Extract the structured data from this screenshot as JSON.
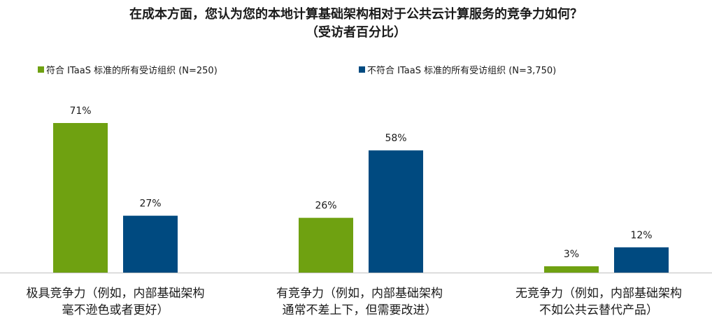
{
  "chart_data": {
    "type": "bar",
    "title": "在成本方面，您认为您的本地计算基础架构相对于公共云计算服务的竞争力如何？",
    "subtitle": "（受访者百分比）",
    "categories": [
      [
        "极具竞争力（例如，内部基础架构",
        "毫不逊色或者更好）"
      ],
      [
        "有竞争力（例如，内部基础架构",
        "通常不差上下，但需要改进）"
      ],
      [
        "无竞争力（例如，内部基础架构",
        "不如公共云替代产品）"
      ]
    ],
    "series": [
      {
        "name": "符合 ITaaS 标准的所有受访组织 (N=250)",
        "color": "#6fa111",
        "values": [
          71,
          26,
          3
        ],
        "labels": [
          "71%",
          "26%",
          "3%"
        ]
      },
      {
        "name": "不符合 ITaaS 标准的所有受访组织 (N=3,750)",
        "color": "#004a80",
        "values": [
          27,
          58,
          12
        ],
        "labels": [
          "27%",
          "58%",
          "12%"
        ]
      }
    ],
    "ylim": [
      0,
      80
    ],
    "grid": false,
    "legend_position": "top"
  }
}
